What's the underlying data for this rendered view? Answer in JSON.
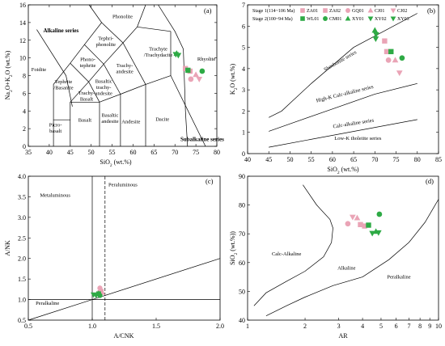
{
  "figure": {
    "panels": [
      "(a)",
      "(b)",
      "(c)",
      "(d)"
    ]
  },
  "colors": {
    "pink": "#eaa4b6",
    "green": "#2eaa45",
    "line": "#000000"
  },
  "legend": {
    "stage1_label": "Stage 1(114~106 Ma)",
    "stage2_label": "Stage 2(100~94 Ma)",
    "stage1": [
      {
        "code": "ZA01",
        "marker": "square"
      },
      {
        "code": "ZA02",
        "marker": "square"
      },
      {
        "code": "GQ01",
        "marker": "circle"
      },
      {
        "code": "CJ01",
        "marker": "triangle-up"
      },
      {
        "code": "CJ02",
        "marker": "triangle-down"
      }
    ],
    "stage2": [
      {
        "code": "WL01",
        "marker": "square"
      },
      {
        "code": "CM01",
        "marker": "circle"
      },
      {
        "code": "XY01",
        "marker": "triangle-up"
      },
      {
        "code": "XY02",
        "marker": "triangle-down"
      },
      {
        "code": "XY03",
        "marker": "triangle-down"
      }
    ]
  },
  "chart_data": [
    {
      "id": "a",
      "type": "scatter",
      "panel_label": "(a)",
      "xlabel": "SiO2 (wt.%)",
      "ylabel": "Na2O+K2O (wt.%)",
      "xlim": [
        35,
        80
      ],
      "ylim": [
        0,
        16
      ],
      "xticks": [
        35,
        40,
        45,
        50,
        55,
        60,
        65,
        70,
        75,
        80
      ],
      "yticks": [
        0,
        2,
        4,
        6,
        8,
        10,
        12,
        14,
        16
      ],
      "regions": [
        {
          "label": "Phonolite",
          "x": 57.5,
          "y": 14.5
        },
        {
          "label": "Tephri-\nphonolite",
          "x": 53.5,
          "y": 11.7
        },
        {
          "label": "Phono-\ntephrite",
          "x": 49.2,
          "y": 9.3
        },
        {
          "label": "Foidite",
          "x": 37.5,
          "y": 8.5
        },
        {
          "label": "Tephrite\n/Basanite",
          "x": 43.4,
          "y": 6.8
        },
        {
          "label": "Basaltic\ntrachy-\nandesite",
          "x": 53.0,
          "y": 6.5
        },
        {
          "label": "Trachy-\nandesite",
          "x": 58.0,
          "y": 8.6
        },
        {
          "label": "Trachyte\n/Trachydacite",
          "x": 66.0,
          "y": 10.5
        },
        {
          "label": "Trachy-\nBasalt",
          "x": 48.9,
          "y": 5.5
        },
        {
          "label": "Rhyolite",
          "x": 77.5,
          "y": 9.7
        },
        {
          "label": "Picro-\nbasalt",
          "x": 41.5,
          "y": 1.9
        },
        {
          "label": "Basalt",
          "x": 48.5,
          "y": 2.8
        },
        {
          "label": "Basaltic\nandesite",
          "x": 54.5,
          "y": 3.0
        },
        {
          "label": "Andesite",
          "x": 59.5,
          "y": 2.6
        },
        {
          "label": "Dacite",
          "x": 67.0,
          "y": 2.9
        }
      ],
      "series_labels": [
        {
          "label": "Alkaline series",
          "x": 42.8,
          "y": 12.9
        },
        {
          "label": "Subalkaline series",
          "x": 76.5,
          "y": 0.6
        }
      ],
      "points": [
        {
          "code": "ZA01",
          "x": 72.5,
          "y": 8.8
        },
        {
          "code": "ZA02",
          "x": 73.6,
          "y": 8.5
        },
        {
          "code": "GQ01",
          "x": 73.8,
          "y": 7.6
        },
        {
          "code": "CJ01",
          "x": 75.0,
          "y": 8.1
        },
        {
          "code": "CJ02",
          "x": 75.8,
          "y": 7.6
        },
        {
          "code": "WL01",
          "x": 73.1,
          "y": 8.6
        },
        {
          "code": "CM01",
          "x": 76.5,
          "y": 8.5
        },
        {
          "code": "XY01",
          "x": 70.4,
          "y": 10.5
        },
        {
          "code": "XY02",
          "x": 70.8,
          "y": 10.3
        },
        {
          "code": "XY03",
          "x": 70.2,
          "y": 10.4
        }
      ]
    },
    {
      "id": "b",
      "type": "scatter",
      "panel_label": "(b)",
      "xlabel": "SiO2 (wt.%)",
      "ylabel": "K2O (wt.%)",
      "xlim": [
        40,
        85
      ],
      "ylim": [
        0,
        7
      ],
      "xticks": [
        40,
        45,
        50,
        55,
        60,
        65,
        70,
        75,
        80,
        85
      ],
      "yticks": [
        0,
        1,
        2,
        3,
        4,
        5,
        6,
        7
      ],
      "boundary_lines": [
        [
          [
            45,
            1.7
          ],
          [
            48,
            2.0
          ],
          [
            55,
            3.3
          ],
          [
            65,
            5.0
          ],
          [
            80,
            6.6
          ]
        ],
        [
          [
            45,
            1.05
          ],
          [
            50,
            1.4
          ],
          [
            60,
            2.1
          ],
          [
            70,
            2.8
          ],
          [
            80,
            3.3
          ]
        ],
        [
          [
            45,
            0.3
          ],
          [
            80,
            1.6
          ]
        ]
      ],
      "regions": [
        {
          "label": "Shoshonite series",
          "x": 62.0,
          "y": 4.3,
          "angle": -30
        },
        {
          "label": "High-K Calc-alkaline series",
          "x": 63.0,
          "y": 2.75,
          "angle": -14
        },
        {
          "label": "Calc-alkaline series",
          "x": 65.0,
          "y": 1.35,
          "angle": -9
        },
        {
          "label": "Low-K tholeiite series",
          "x": 66.0,
          "y": 0.65,
          "angle": 0
        }
      ],
      "points": [
        {
          "code": "ZA01",
          "x": 72.3,
          "y": 5.3
        },
        {
          "code": "ZA02",
          "x": 72.8,
          "y": 4.8
        },
        {
          "code": "GQ01",
          "x": 73.2,
          "y": 4.4
        },
        {
          "code": "CJ01",
          "x": 74.8,
          "y": 4.4
        },
        {
          "code": "CJ02",
          "x": 75.8,
          "y": 3.8
        },
        {
          "code": "WL01",
          "x": 73.8,
          "y": 4.8
        },
        {
          "code": "CM01",
          "x": 76.4,
          "y": 4.5
        },
        {
          "code": "XY01",
          "x": 70.0,
          "y": 5.8
        },
        {
          "code": "XY02",
          "x": 70.3,
          "y": 5.6
        },
        {
          "code": "XY03",
          "x": 70.2,
          "y": 5.4
        }
      ]
    },
    {
      "id": "c",
      "type": "scatter",
      "panel_label": "(c)",
      "xlabel": "A/CNK",
      "ylabel": "A/NK",
      "xlim": [
        0.5,
        2.0
      ],
      "ylim": [
        0.5,
        4.0
      ],
      "xticks": [
        0.5,
        1.0,
        1.5,
        2.0
      ],
      "xtick_labels": [
        "0.5",
        "1.0",
        "1.5",
        "2.0"
      ],
      "yticks": [
        0.5,
        1.0,
        1.5,
        2.0,
        2.5,
        3.0,
        3.5,
        4.0
      ],
      "ytick_labels": [
        "0.5",
        "1.0",
        "1.5",
        "2.0",
        "2.5",
        "3.0",
        "3.5",
        "4.0"
      ],
      "regions": [
        {
          "label": "Metaluminous",
          "x": 0.71,
          "y": 3.5
        },
        {
          "label": "Peraluminous",
          "x": 1.24,
          "y": 3.75
        },
        {
          "label": "Peralkaline",
          "x": 0.65,
          "y": 0.87
        }
      ],
      "points": [
        {
          "code": "ZA01",
          "x": 1.07,
          "y": 1.2
        },
        {
          "code": "ZA02",
          "x": 1.06,
          "y": 1.17
        },
        {
          "code": "GQ01",
          "x": 1.06,
          "y": 1.28
        },
        {
          "code": "CJ01",
          "x": 1.08,
          "y": 1.17
        },
        {
          "code": "CJ02",
          "x": 1.05,
          "y": 1.12
        },
        {
          "code": "WL01",
          "x": 1.05,
          "y": 1.14
        },
        {
          "code": "CM01",
          "x": 1.06,
          "y": 1.1
        },
        {
          "code": "XY01",
          "x": 1.05,
          "y": 1.15
        },
        {
          "code": "XY02",
          "x": 1.03,
          "y": 1.1
        },
        {
          "code": "XY03",
          "x": 1.01,
          "y": 1.12
        }
      ]
    },
    {
      "id": "d",
      "type": "scatter",
      "panel_label": "(d)",
      "xlabel": "AR",
      "ylabel": "SiO2 (wt.%)",
      "xscale": "log",
      "xlim": [
        1,
        10
      ],
      "ylim": [
        40,
        90
      ],
      "xticks": [
        1,
        2,
        3,
        4,
        5,
        6,
        7,
        8,
        9,
        10
      ],
      "xtick_labels": [
        "1",
        "2",
        "3",
        "4",
        "5",
        "6",
        "7",
        "8",
        "9",
        "10"
      ],
      "yticks": [
        40,
        50,
        60,
        70,
        80,
        90
      ],
      "regions": [
        {
          "label": "Calc-Alkaline",
          "x": 1.6,
          "y": 62.5
        },
        {
          "label": "Alkaline",
          "x": 3.3,
          "y": 57.5
        },
        {
          "label": "Peralkaline",
          "x": 6.2,
          "y": 54.5
        }
      ],
      "points": [
        {
          "code": "ZA01",
          "x": 3.9,
          "y": 73.2
        },
        {
          "code": "ZA02",
          "x": 4.1,
          "y": 72.7
        },
        {
          "code": "GQ01",
          "x": 3.35,
          "y": 73.5
        },
        {
          "code": "CJ01",
          "x": 3.75,
          "y": 75.5
        },
        {
          "code": "CJ02",
          "x": 3.55,
          "y": 75.8
        },
        {
          "code": "WL01",
          "x": 4.3,
          "y": 73.0
        },
        {
          "code": "CM01",
          "x": 4.9,
          "y": 76.8
        },
        {
          "code": "XY01",
          "x": 4.7,
          "y": 70.8
        },
        {
          "code": "XY02",
          "x": 4.5,
          "y": 70.2
        },
        {
          "code": "XY03",
          "x": 4.85,
          "y": 70.4
        }
      ]
    }
  ]
}
